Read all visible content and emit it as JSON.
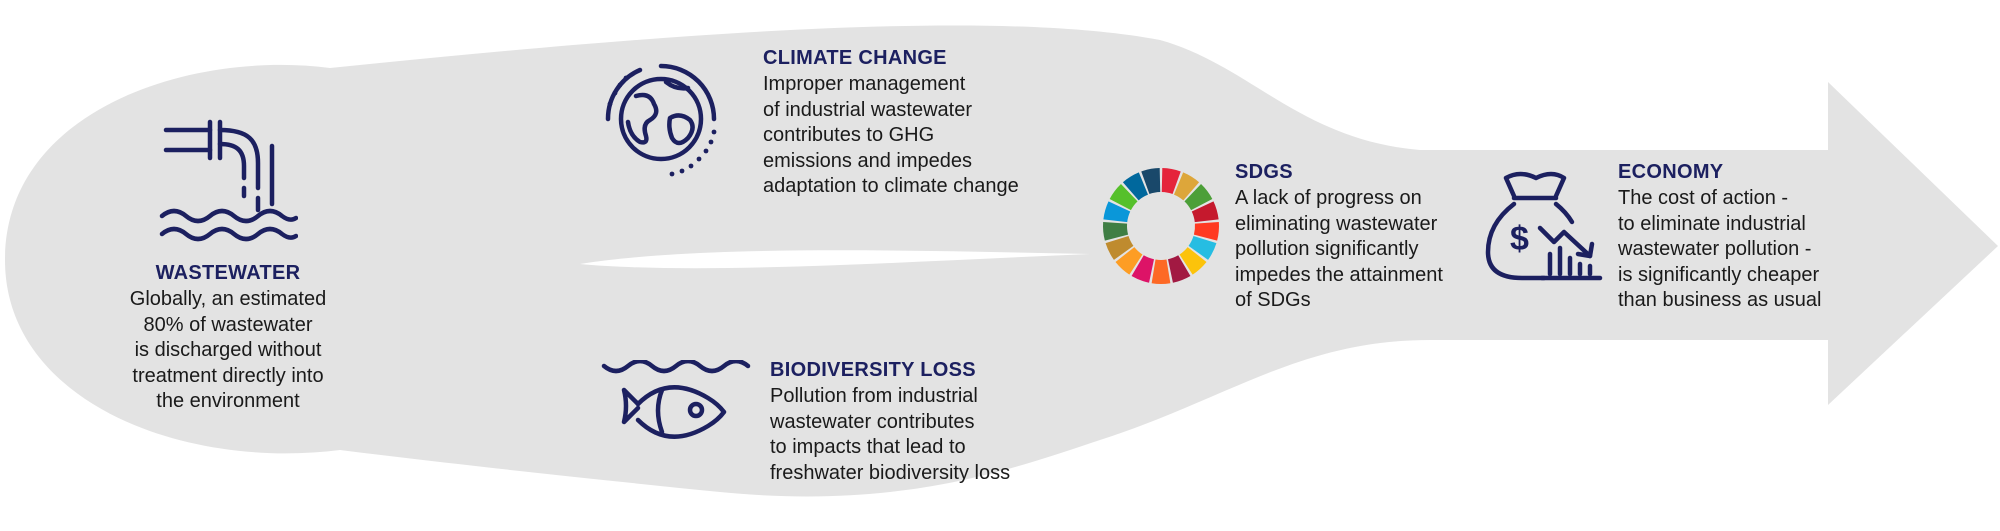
{
  "colors": {
    "background_shape": "#e3e3e3",
    "accent_navy": "#1c2060",
    "text": "#1a1a1a"
  },
  "wastewater": {
    "title": "WASTEWATER",
    "lines": [
      "Globally, an estimated",
      "80% of wastewater",
      "is discharged without",
      "treatment directly into",
      "the environment"
    ],
    "icon": "pipe-discharge-icon"
  },
  "climate_change": {
    "title": "CLIMATE CHANGE",
    "lines": [
      "Improper management",
      "of industrial wastewater",
      "contributes to GHG",
      "emissions and impedes",
      "adaptation to climate change"
    ],
    "icon": "globe-icon"
  },
  "biodiversity_loss": {
    "title": "BIODIVERSITY LOSS",
    "lines": [
      "Pollution from industrial",
      "wastewater contributes",
      "to impacts that lead to",
      "freshwater biodiversity loss"
    ],
    "icon": "fish-icon"
  },
  "sdgs": {
    "title": "SDGS",
    "lines": [
      "A lack of progress on",
      "eliminating wastewater",
      "pollution significantly",
      "impedes the attainment",
      "of SDGs"
    ],
    "icon": "sdg-wheel-icon",
    "wheel_colors": [
      "#e5243b",
      "#dda63a",
      "#4c9f38",
      "#c5192d",
      "#ff3a21",
      "#26bde2",
      "#fcc30b",
      "#a21942",
      "#fd6925",
      "#dd1367",
      "#fd9d24",
      "#bf8b2e",
      "#3f7e44",
      "#0a97d9",
      "#56c02b",
      "#00689d",
      "#19486a"
    ]
  },
  "economy": {
    "title": "ECONOMY",
    "lines": [
      "The cost of action -",
      "to eliminate industrial",
      "wastewater pollution -",
      "is significantly cheaper",
      "than business as usual"
    ],
    "icon": "money-bag-decline-icon"
  }
}
